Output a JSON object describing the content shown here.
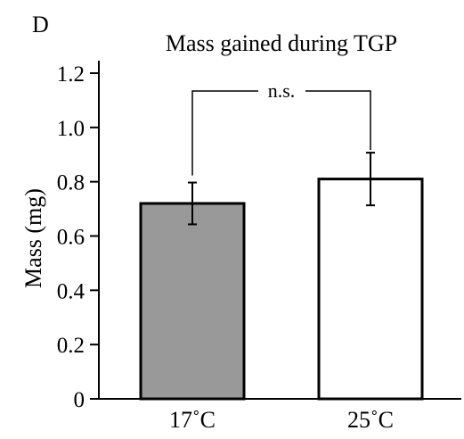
{
  "panel_label": "D",
  "chart_data": {
    "type": "bar",
    "title": "Mass gained during TGP",
    "xlabel": "",
    "ylabel": "Mass (mg)",
    "categories": [
      "17˚C",
      "25˚C"
    ],
    "values": [
      0.72,
      0.81
    ],
    "error": [
      0.077,
      0.097
    ],
    "bar_colors": [
      "#999999",
      "#ffffff"
    ],
    "ylim": [
      0,
      1.25
    ],
    "yticks": [
      0,
      0.2,
      0.4,
      0.6,
      0.8,
      1.0,
      1.2
    ],
    "ytick_labels": [
      "0",
      "0.2",
      "0.4",
      "0.6",
      "0.8",
      "1.0",
      "1.2"
    ],
    "grid": false,
    "annotation": "n.s."
  }
}
